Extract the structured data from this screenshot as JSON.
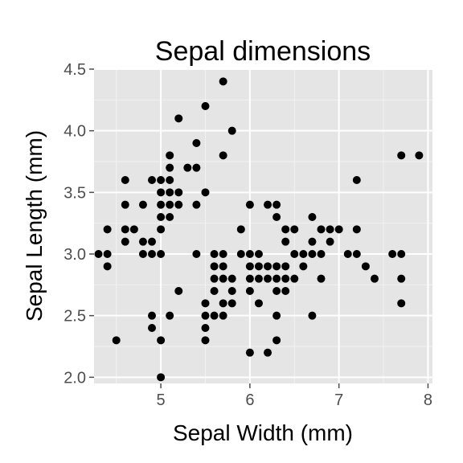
{
  "chart_data": {
    "type": "scatter",
    "title": "Sepal dimensions",
    "xlabel": "Sepal Width (mm)",
    "ylabel": "Sepal Length (mm)",
    "xlim": [
      4.25,
      8.05
    ],
    "ylim": [
      1.95,
      4.5
    ],
    "xticks": [
      5,
      6,
      7,
      8
    ],
    "yticks": [
      2.0,
      2.5,
      3.0,
      3.5,
      4.0,
      4.5
    ],
    "xtick_labels": [
      "5",
      "6",
      "7",
      "8"
    ],
    "ytick_labels": [
      "2.0",
      "2.5",
      "3.0",
      "3.5",
      "4.0",
      "4.5"
    ],
    "grid": true,
    "colors": {
      "panel": "#e5e5e5",
      "grid_major": "#ffffff",
      "grid_minor": "#f2f2f2",
      "point": "#000000",
      "tick_label": "#4d4d4d"
    },
    "points": [
      [
        4.3,
        3.0
      ],
      [
        4.4,
        3.0
      ],
      [
        4.4,
        3.2
      ],
      [
        4.4,
        2.9
      ],
      [
        4.5,
        2.3
      ],
      [
        4.6,
        3.6
      ],
      [
        4.6,
        3.4
      ],
      [
        4.6,
        3.2
      ],
      [
        4.6,
        3.1
      ],
      [
        4.7,
        3.2
      ],
      [
        4.8,
        3.4
      ],
      [
        4.8,
        3.0
      ],
      [
        4.8,
        3.1
      ],
      [
        4.9,
        3.1
      ],
      [
        4.9,
        3.0
      ],
      [
        4.9,
        2.5
      ],
      [
        4.9,
        2.4
      ],
      [
        4.9,
        3.6
      ],
      [
        5.0,
        3.6
      ],
      [
        5.0,
        3.4
      ],
      [
        5.0,
        3.5
      ],
      [
        5.0,
        3.3
      ],
      [
        5.0,
        3.2
      ],
      [
        5.0,
        3.0
      ],
      [
        5.0,
        2.3
      ],
      [
        5.0,
        2.0
      ],
      [
        5.1,
        3.5
      ],
      [
        5.1,
        3.8
      ],
      [
        5.1,
        3.4
      ],
      [
        5.1,
        3.3
      ],
      [
        5.1,
        3.7
      ],
      [
        5.1,
        2.5
      ],
      [
        5.1,
        3.6
      ],
      [
        5.2,
        3.5
      ],
      [
        5.2,
        3.4
      ],
      [
        5.2,
        4.1
      ],
      [
        5.2,
        2.7
      ],
      [
        5.3,
        3.7
      ],
      [
        5.4,
        3.9
      ],
      [
        5.4,
        3.7
      ],
      [
        5.4,
        3.4
      ],
      [
        5.4,
        3.0
      ],
      [
        5.5,
        4.2
      ],
      [
        5.5,
        3.5
      ],
      [
        5.5,
        2.3
      ],
      [
        5.5,
        2.6
      ],
      [
        5.5,
        2.4
      ],
      [
        5.5,
        2.5
      ],
      [
        5.6,
        2.9
      ],
      [
        5.6,
        3.0
      ],
      [
        5.6,
        2.5
      ],
      [
        5.6,
        2.7
      ],
      [
        5.6,
        2.8
      ],
      [
        5.7,
        4.4
      ],
      [
        5.7,
        3.8
      ],
      [
        5.7,
        2.8
      ],
      [
        5.7,
        2.6
      ],
      [
        5.7,
        3.0
      ],
      [
        5.7,
        2.9
      ],
      [
        5.7,
        2.5
      ],
      [
        5.8,
        4.0
      ],
      [
        5.8,
        2.7
      ],
      [
        5.8,
        2.6
      ],
      [
        5.8,
        2.8
      ],
      [
        5.9,
        3.0
      ],
      [
        5.9,
        3.2
      ],
      [
        6.0,
        3.4
      ],
      [
        6.0,
        2.2
      ],
      [
        6.0,
        2.9
      ],
      [
        6.0,
        2.7
      ],
      [
        6.0,
        3.0
      ],
      [
        6.0,
        2.8
      ],
      [
        6.1,
        2.9
      ],
      [
        6.1,
        2.8
      ],
      [
        6.1,
        2.6
      ],
      [
        6.1,
        3.0
      ],
      [
        6.2,
        2.2
      ],
      [
        6.2,
        2.9
      ],
      [
        6.2,
        3.4
      ],
      [
        6.2,
        2.8
      ],
      [
        6.3,
        3.3
      ],
      [
        6.3,
        2.5
      ],
      [
        6.3,
        2.3
      ],
      [
        6.3,
        2.9
      ],
      [
        6.3,
        2.7
      ],
      [
        6.3,
        3.4
      ],
      [
        6.3,
        2.8
      ],
      [
        6.4,
        3.2
      ],
      [
        6.4,
        2.9
      ],
      [
        6.4,
        2.7
      ],
      [
        6.4,
        2.8
      ],
      [
        6.4,
        3.1
      ],
      [
        6.5,
        2.8
      ],
      [
        6.5,
        3.0
      ],
      [
        6.5,
        3.2
      ],
      [
        6.6,
        2.9
      ],
      [
        6.6,
        3.0
      ],
      [
        6.7,
        3.1
      ],
      [
        6.7,
        3.0
      ],
      [
        6.7,
        2.5
      ],
      [
        6.7,
        3.3
      ],
      [
        6.8,
        2.8
      ],
      [
        6.8,
        3.0
      ],
      [
        6.8,
        3.2
      ],
      [
        6.9,
        3.1
      ],
      [
        6.9,
        3.2
      ],
      [
        7.0,
        3.2
      ],
      [
        7.1,
        3.0
      ],
      [
        7.2,
        3.6
      ],
      [
        7.2,
        3.2
      ],
      [
        7.2,
        3.0
      ],
      [
        7.3,
        2.9
      ],
      [
        7.4,
        2.8
      ],
      [
        7.6,
        3.0
      ],
      [
        7.7,
        3.8
      ],
      [
        7.7,
        2.6
      ],
      [
        7.7,
        2.8
      ],
      [
        7.7,
        3.0
      ],
      [
        7.9,
        3.8
      ]
    ]
  }
}
